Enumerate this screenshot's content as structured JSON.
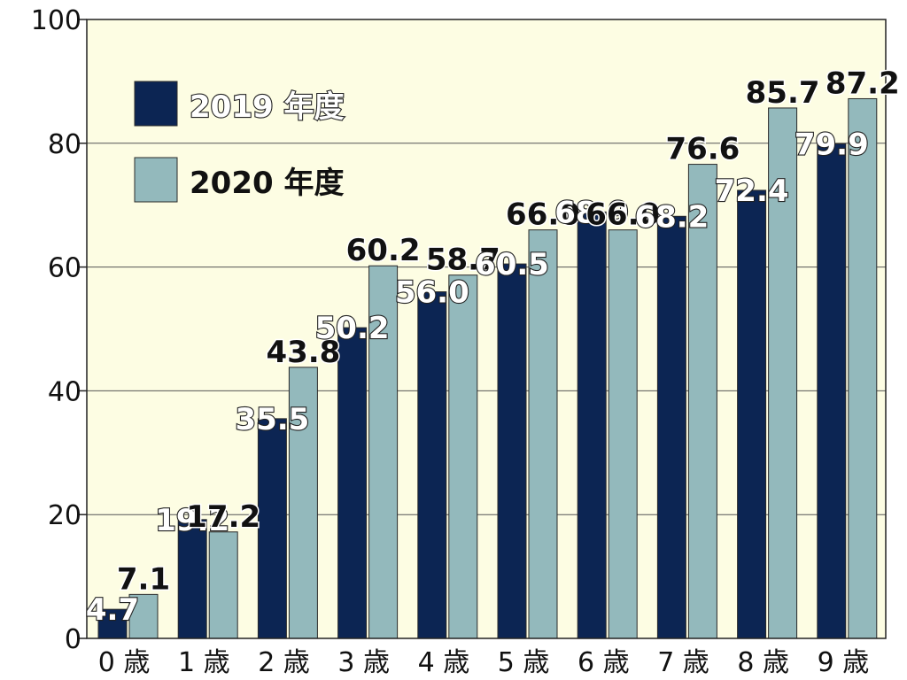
{
  "chart_data": {
    "type": "bar",
    "categories": [
      "0 歳",
      "1 歳",
      "2 歳",
      "3 歳",
      "4 歳",
      "5 歳",
      "6 歳",
      "7 歳",
      "8 歳",
      "9 歳"
    ],
    "series": [
      {
        "name": "2019 年度",
        "values": [
          4.7,
          19.2,
          35.5,
          50.2,
          56.0,
          60.5,
          68.9,
          68.2,
          72.4,
          79.9
        ]
      },
      {
        "name": "2020 年度",
        "values": [
          7.1,
          17.2,
          43.8,
          60.2,
          58.7,
          66.0,
          66.0,
          76.6,
          85.7,
          87.2
        ]
      }
    ],
    "value_labels": {
      "2019": [
        "4.7",
        "19.2",
        "35.5",
        "50.2",
        "56.0",
        "60.5",
        "68.9",
        "68.2",
        "72.4",
        "79.9"
      ],
      "2020": [
        "7.1",
        "17.2",
        "43.8",
        "60.2",
        "58.7",
        "66.0",
        "66.0",
        "76.6",
        "85.7",
        "87.2"
      ]
    },
    "yticks": [
      "0",
      "20",
      "40",
      "60",
      "80",
      "100"
    ],
    "ylim": [
      0,
      100
    ],
    "title": "",
    "xlabel": "",
    "ylabel": "",
    "grid": true,
    "legend_position": "top-left",
    "colors": {
      "series_2019": "#0c2553",
      "series_2020": "#93b9bc",
      "plot_background": "#fdfde3"
    }
  }
}
